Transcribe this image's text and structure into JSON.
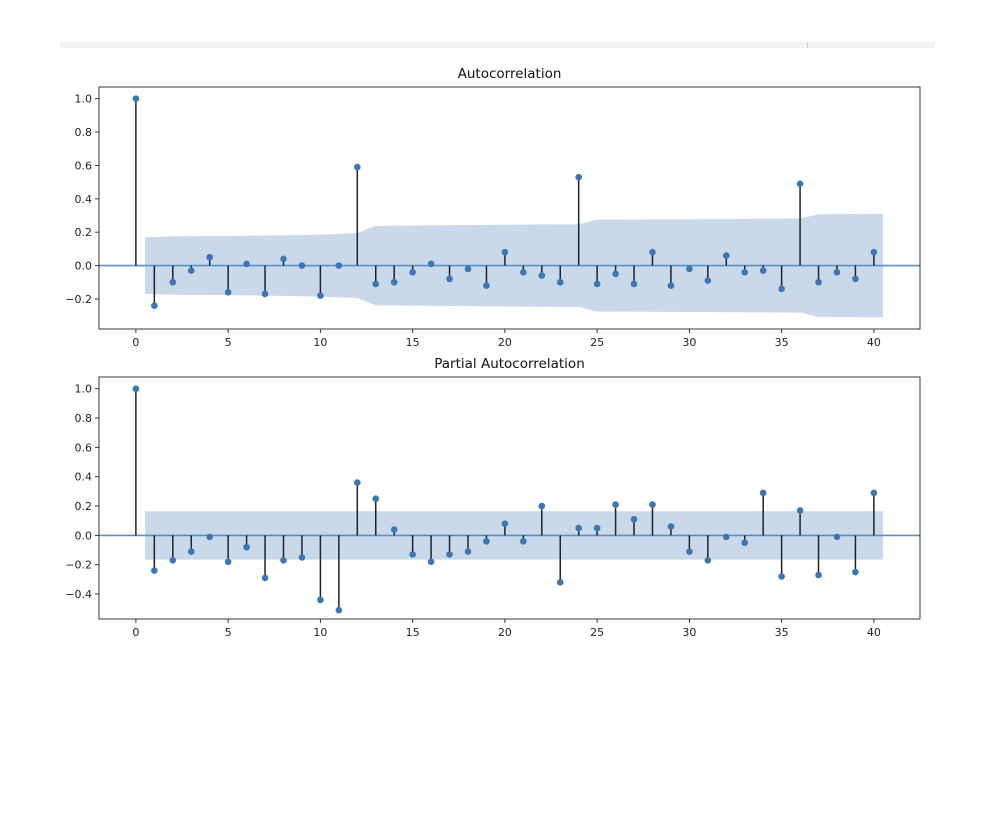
{
  "chart_data": [
    {
      "type": "stem",
      "title": "Autocorrelation",
      "xlabel": "",
      "ylabel": "",
      "xlim": [
        -2,
        42.5
      ],
      "ylim": [
        -0.38,
        1.07
      ],
      "xticks": [
        "0",
        "5",
        "10",
        "15",
        "20",
        "25",
        "30",
        "35",
        "40"
      ],
      "yticks": [
        "1.0",
        "0.8",
        "0.6",
        "0.4",
        "0.2",
        "0.0",
        "−0.2"
      ],
      "lags": [
        0,
        1,
        2,
        3,
        4,
        5,
        6,
        7,
        8,
        9,
        10,
        11,
        12,
        13,
        14,
        15,
        16,
        17,
        18,
        19,
        20,
        21,
        22,
        23,
        24,
        25,
        26,
        27,
        28,
        29,
        30,
        31,
        32,
        33,
        34,
        35,
        36,
        37,
        38,
        39,
        40
      ],
      "values": [
        1.0,
        -0.24,
        -0.1,
        -0.03,
        0.05,
        -0.16,
        0.01,
        -0.17,
        0.04,
        0.0,
        -0.18,
        0.0,
        0.59,
        -0.11,
        -0.1,
        -0.04,
        0.01,
        -0.08,
        -0.02,
        -0.12,
        0.08,
        -0.04,
        -0.06,
        -0.1,
        0.53,
        -0.11,
        -0.05,
        -0.11,
        0.08,
        -0.12,
        -0.02,
        -0.09,
        0.06,
        -0.04,
        -0.03,
        -0.14,
        0.49,
        -0.1,
        -0.04,
        -0.08,
        0.08
      ],
      "confidence_band": [
        [
          0.5,
          0.17
        ],
        [
          2,
          0.175
        ],
        [
          5,
          0.177
        ],
        [
          10,
          0.185
        ],
        [
          12,
          0.195
        ],
        [
          13,
          0.238
        ],
        [
          15,
          0.24
        ],
        [
          20,
          0.245
        ],
        [
          24,
          0.248
        ],
        [
          25,
          0.275
        ],
        [
          30,
          0.278
        ],
        [
          36,
          0.282
        ],
        [
          37,
          0.308
        ],
        [
          40.5,
          0.31
        ]
      ],
      "colors": {
        "marker": "#3b76b5",
        "stem": "#222222",
        "baseline": "#5a8fc5",
        "band": "#c9d9ea"
      }
    },
    {
      "type": "stem",
      "title": "Partial Autocorrelation",
      "xlabel": "",
      "ylabel": "",
      "xlim": [
        -2,
        42.5
      ],
      "ylim": [
        -0.57,
        1.08
      ],
      "xticks": [
        "0",
        "5",
        "10",
        "15",
        "20",
        "25",
        "30",
        "35",
        "40"
      ],
      "yticks": [
        "1.0",
        "0.8",
        "0.6",
        "0.4",
        "0.2",
        "0.0",
        "−0.2",
        "−0.4"
      ],
      "lags": [
        0,
        1,
        2,
        3,
        4,
        5,
        6,
        7,
        8,
        9,
        10,
        11,
        12,
        13,
        14,
        15,
        16,
        17,
        18,
        19,
        20,
        21,
        22,
        23,
        24,
        25,
        26,
        27,
        28,
        29,
        30,
        31,
        32,
        33,
        34,
        35,
        36,
        37,
        38,
        39,
        40
      ],
      "values": [
        1.0,
        -0.24,
        -0.17,
        -0.11,
        -0.01,
        -0.18,
        -0.08,
        -0.29,
        -0.17,
        -0.15,
        -0.44,
        -0.51,
        0.36,
        0.25,
        0.04,
        -0.13,
        -0.18,
        -0.13,
        -0.11,
        -0.04,
        0.08,
        -0.04,
        0.2,
        -0.32,
        0.05,
        0.05,
        0.21,
        0.11,
        0.21,
        0.06,
        -0.11,
        -0.17,
        -0.01,
        -0.05,
        0.29,
        -0.28,
        0.17,
        -0.27,
        -0.01,
        -0.25,
        0.29
      ],
      "confidence_band": [
        [
          0.5,
          0.165
        ],
        [
          40.5,
          0.165
        ]
      ],
      "colors": {
        "marker": "#3b76b5",
        "stem": "#222222",
        "baseline": "#5a8fc5",
        "band": "#c9d9ea"
      }
    }
  ]
}
